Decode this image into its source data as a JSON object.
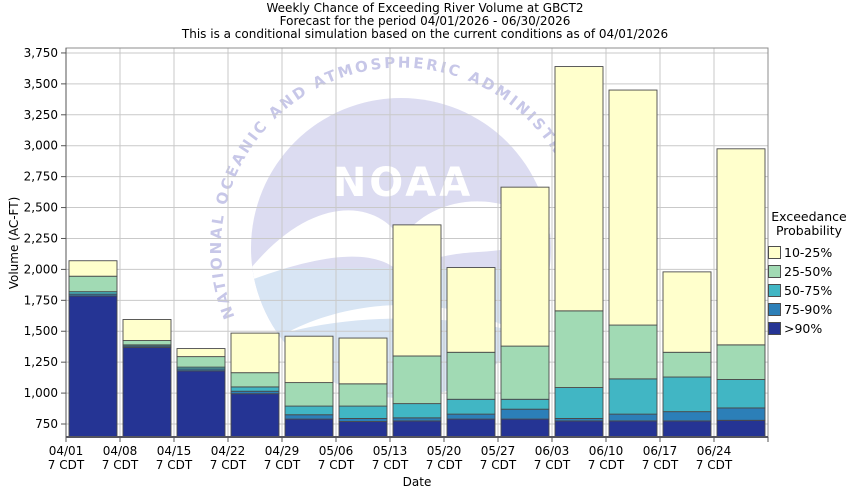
{
  "title_lines": [
    "Weekly Chance of Exceeding River Volume at GBCT2",
    "Forecast for the period 04/01/2026 - 06/30/2026",
    "This is a conditional simulation based on the current conditions as of 04/01/2026"
  ],
  "legend": {
    "title_line1": "Exceedance",
    "title_line2": "Probability",
    "items": [
      {
        "label": "10-25%",
        "color": "#FFFFCC"
      },
      {
        "label": "25-50%",
        "color": "#A1DAB4"
      },
      {
        "label": "50-75%",
        "color": "#41B6C4"
      },
      {
        "label": "75-90%",
        "color": "#2C7FB8"
      },
      {
        "label": ">90%",
        "color": "#253494"
      }
    ]
  },
  "watermark": {
    "name": "noaa-logo",
    "arc_text": "NATIONAL OCEANIC AND ATMOSPHERIC ADMINISTRATION",
    "center_text": "NOAA",
    "colors": {
      "sky": "#dcdcf1",
      "sea": "#d8e5f4",
      "gull": "#ffffff",
      "arc_text": "#c7c7e8"
    }
  },
  "chart_data": {
    "type": "bar",
    "stacked": true,
    "title": "Weekly Chance of Exceeding River Volume at GBCT2",
    "xlabel": "Date",
    "ylabel": "Volume (AC-FT)",
    "ylim": [
      645,
      3790
    ],
    "y_ticks": [
      750,
      1000,
      1250,
      1500,
      1750,
      2000,
      2250,
      2500,
      2750,
      3000,
      3250,
      3500,
      3750
    ],
    "grid": true,
    "legend_position": "right",
    "categories": [
      "04/01",
      "04/08",
      "04/15",
      "04/22",
      "04/29",
      "05/06",
      "05/13",
      "05/20",
      "05/27",
      "06/03",
      "06/10",
      "06/17",
      "06/24"
    ],
    "tick_sublabel": "7 CDT",
    "baseline": 645,
    "series_note": "cumulative_tops are the AC-FT values at the top of each stacked band, bottom band first",
    "series": [
      {
        "name": ">90%",
        "color": "#253494",
        "cumulative_tops": [
          1785,
          1370,
          1180,
          995,
          790,
          770,
          775,
          790,
          790,
          775,
          775,
          775,
          780
        ]
      },
      {
        "name": "75-90%",
        "color": "#2C7FB8",
        "cumulative_tops": [
          1800,
          1380,
          1195,
          1015,
          825,
          795,
          800,
          830,
          870,
          795,
          830,
          850,
          880
        ]
      },
      {
        "name": "50-75%",
        "color": "#41B6C4",
        "cumulative_tops": [
          1820,
          1390,
          1210,
          1050,
          895,
          895,
          915,
          950,
          950,
          1045,
          1115,
          1130,
          1110
        ]
      },
      {
        "name": "25-50%",
        "color": "#A1DAB4",
        "cumulative_tops": [
          1945,
          1425,
          1295,
          1165,
          1085,
          1075,
          1300,
          1330,
          1380,
          1665,
          1550,
          1330,
          1390
        ]
      },
      {
        "name": "10-25%",
        "color": "#FFFFCC",
        "cumulative_tops": [
          2070,
          1595,
          1360,
          1485,
          1460,
          1445,
          2360,
          2015,
          2665,
          3640,
          3450,
          1980,
          2975
        ]
      }
    ]
  }
}
